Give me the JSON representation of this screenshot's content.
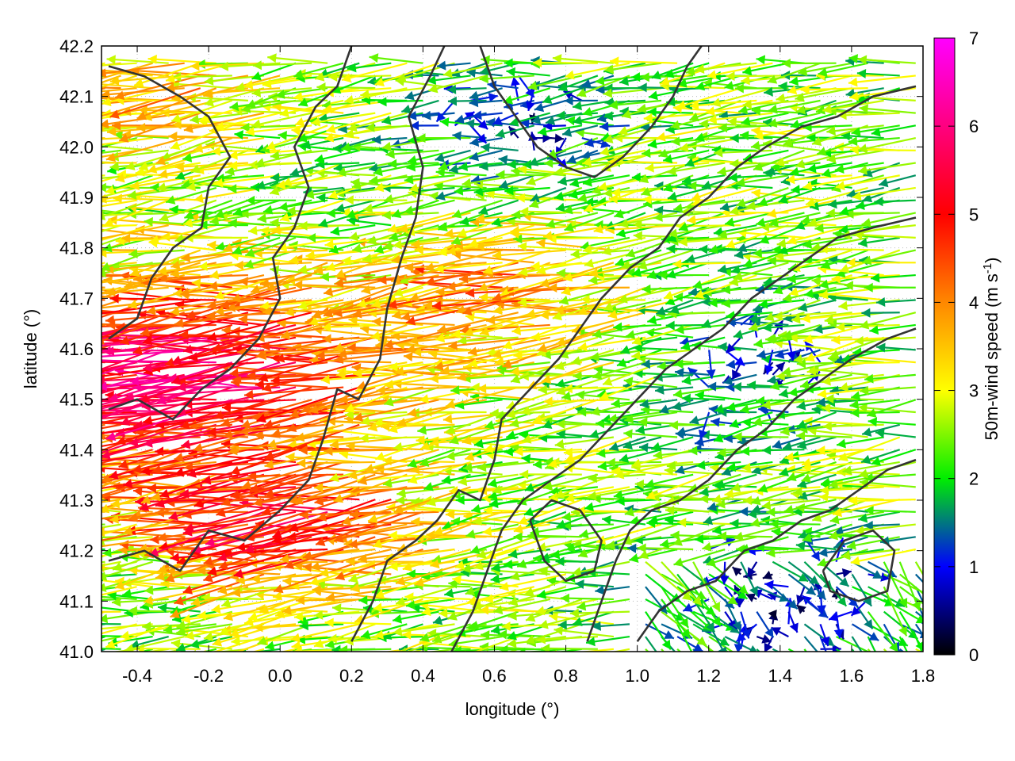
{
  "chart_data": {
    "type": "vector-field",
    "xlabel": "longitude (°)",
    "ylabel": "latitude (°)",
    "xlim": [
      -0.5,
      1.8
    ],
    "ylim": [
      41.0,
      42.2
    ],
    "xticks": [
      "-0.4",
      "-0.2",
      "0.0",
      "0.2",
      "0.4",
      "0.6",
      "0.8",
      "1.0",
      "1.2",
      "1.4",
      "1.6",
      "1.8"
    ],
    "xtick_values": [
      -0.4,
      -0.2,
      0.0,
      0.2,
      0.4,
      0.6,
      0.8,
      1.0,
      1.2,
      1.4,
      1.6,
      1.8
    ],
    "yticks": [
      "41.0",
      "41.1",
      "41.2",
      "41.3",
      "41.4",
      "41.5",
      "41.6",
      "41.7",
      "41.8",
      "41.9",
      "42.0",
      "42.1",
      "42.2"
    ],
    "ytick_values": [
      41.0,
      41.1,
      41.2,
      41.3,
      41.4,
      41.5,
      41.6,
      41.7,
      41.8,
      41.9,
      42.0,
      42.1,
      42.2
    ],
    "grid": true,
    "colorbar": {
      "label": "50m-wind speed (m s",
      "label_sup": "-1",
      "label_end": ")",
      "range": [
        0,
        7
      ],
      "ticks": [
        "0",
        "1",
        "2",
        "3",
        "4",
        "5",
        "6",
        "7"
      ],
      "tick_values": [
        0,
        1,
        2,
        3,
        4,
        5,
        6,
        7
      ],
      "stops": [
        "#000000",
        "#0000ff",
        "#00ee00",
        "#ffff00",
        "#ff8800",
        "#ff0000",
        "#ff00ff"
      ]
    },
    "contour_color": "#333333",
    "contours": [
      [
        [
          -0.48,
          41.18
        ],
        [
          -0.38,
          41.2
        ],
        [
          -0.28,
          41.16
        ],
        [
          -0.2,
          41.24
        ],
        [
          -0.1,
          41.22
        ],
        [
          0.0,
          41.28
        ],
        [
          0.08,
          41.34
        ],
        [
          0.12,
          41.42
        ],
        [
          0.16,
          41.52
        ],
        [
          0.22,
          41.5
        ],
        [
          0.28,
          41.58
        ],
        [
          0.3,
          41.68
        ],
        [
          0.34,
          41.78
        ],
        [
          0.38,
          41.86
        ],
        [
          0.4,
          41.96
        ],
        [
          0.36,
          42.06
        ],
        [
          0.42,
          42.14
        ],
        [
          0.46,
          42.2
        ]
      ],
      [
        [
          -0.48,
          41.48
        ],
        [
          -0.4,
          41.5
        ],
        [
          -0.3,
          41.46
        ],
        [
          -0.22,
          41.52
        ],
        [
          -0.14,
          41.56
        ],
        [
          -0.06,
          41.62
        ],
        [
          0.0,
          41.7
        ],
        [
          -0.02,
          41.78
        ],
        [
          0.04,
          41.84
        ],
        [
          0.08,
          41.92
        ],
        [
          0.04,
          42.0
        ],
        [
          0.1,
          42.08
        ],
        [
          0.16,
          42.12
        ],
        [
          0.2,
          42.2
        ]
      ],
      [
        [
          -0.48,
          41.62
        ],
        [
          -0.4,
          41.66
        ],
        [
          -0.36,
          41.74
        ],
        [
          -0.3,
          41.8
        ],
        [
          -0.22,
          41.84
        ],
        [
          -0.2,
          41.92
        ],
        [
          -0.14,
          41.98
        ],
        [
          -0.2,
          42.06
        ],
        [
          -0.28,
          42.1
        ],
        [
          -0.38,
          42.14
        ],
        [
          -0.48,
          42.16
        ]
      ],
      [
        [
          0.2,
          41.02
        ],
        [
          0.26,
          41.1
        ],
        [
          0.3,
          41.18
        ],
        [
          0.38,
          41.22
        ],
        [
          0.44,
          41.26
        ],
        [
          0.5,
          41.32
        ],
        [
          0.56,
          41.3
        ],
        [
          0.6,
          41.38
        ],
        [
          0.62,
          41.46
        ],
        [
          0.7,
          41.52
        ],
        [
          0.78,
          41.58
        ],
        [
          0.84,
          41.64
        ],
        [
          0.9,
          41.7
        ],
        [
          0.98,
          41.76
        ],
        [
          1.06,
          41.8
        ],
        [
          1.12,
          41.86
        ],
        [
          1.2,
          41.9
        ],
        [
          1.28,
          41.96
        ],
        [
          1.36,
          42.0
        ],
        [
          1.46,
          42.04
        ],
        [
          1.56,
          42.06
        ],
        [
          1.66,
          42.1
        ],
        [
          1.78,
          42.12
        ]
      ],
      [
        [
          0.48,
          41.0
        ],
        [
          0.54,
          41.08
        ],
        [
          0.58,
          41.16
        ],
        [
          0.62,
          41.24
        ],
        [
          0.68,
          41.3
        ],
        [
          0.76,
          41.34
        ],
        [
          0.84,
          41.38
        ],
        [
          0.92,
          41.44
        ],
        [
          1.0,
          41.5
        ],
        [
          1.08,
          41.56
        ],
        [
          1.16,
          41.6
        ],
        [
          1.24,
          41.64
        ],
        [
          1.32,
          41.7
        ],
        [
          1.4,
          41.74
        ],
        [
          1.48,
          41.78
        ],
        [
          1.56,
          41.82
        ],
        [
          1.66,
          41.84
        ],
        [
          1.78,
          41.86
        ]
      ],
      [
        [
          0.86,
          41.02
        ],
        [
          0.9,
          41.1
        ],
        [
          0.94,
          41.18
        ],
        [
          0.98,
          41.24
        ],
        [
          1.04,
          41.28
        ],
        [
          1.12,
          41.3
        ],
        [
          1.2,
          41.34
        ],
        [
          1.28,
          41.4
        ],
        [
          1.36,
          41.44
        ],
        [
          1.44,
          41.5
        ],
        [
          1.52,
          41.54
        ],
        [
          1.6,
          41.58
        ],
        [
          1.7,
          41.62
        ],
        [
          1.78,
          41.64
        ]
      ],
      [
        [
          1.0,
          41.02
        ],
        [
          1.06,
          41.08
        ],
        [
          1.14,
          41.12
        ],
        [
          1.22,
          41.14
        ],
        [
          1.3,
          41.2
        ],
        [
          1.38,
          41.22
        ],
        [
          1.46,
          41.26
        ],
        [
          1.54,
          41.28
        ],
        [
          1.62,
          41.32
        ],
        [
          1.7,
          41.36
        ],
        [
          1.78,
          41.38
        ]
      ],
      [
        [
          0.56,
          42.2
        ],
        [
          0.6,
          42.12
        ],
        [
          0.66,
          42.06
        ],
        [
          0.72,
          42.0
        ],
        [
          0.8,
          41.96
        ],
        [
          0.88,
          41.94
        ],
        [
          0.96,
          41.98
        ],
        [
          1.04,
          42.04
        ],
        [
          1.1,
          42.1
        ],
        [
          1.14,
          42.16
        ],
        [
          1.18,
          42.2
        ]
      ],
      [
        [
          0.7,
          41.26
        ],
        [
          0.76,
          41.3
        ],
        [
          0.84,
          41.28
        ],
        [
          0.9,
          41.22
        ],
        [
          0.88,
          41.16
        ],
        [
          0.8,
          41.14
        ],
        [
          0.74,
          41.18
        ],
        [
          0.7,
          41.26
        ]
      ],
      [
        [
          1.52,
          41.16
        ],
        [
          1.58,
          41.22
        ],
        [
          1.66,
          41.24
        ],
        [
          1.72,
          41.2
        ],
        [
          1.7,
          41.12
        ],
        [
          1.62,
          41.1
        ],
        [
          1.54,
          41.12
        ],
        [
          1.52,
          41.16
        ]
      ]
    ]
  }
}
